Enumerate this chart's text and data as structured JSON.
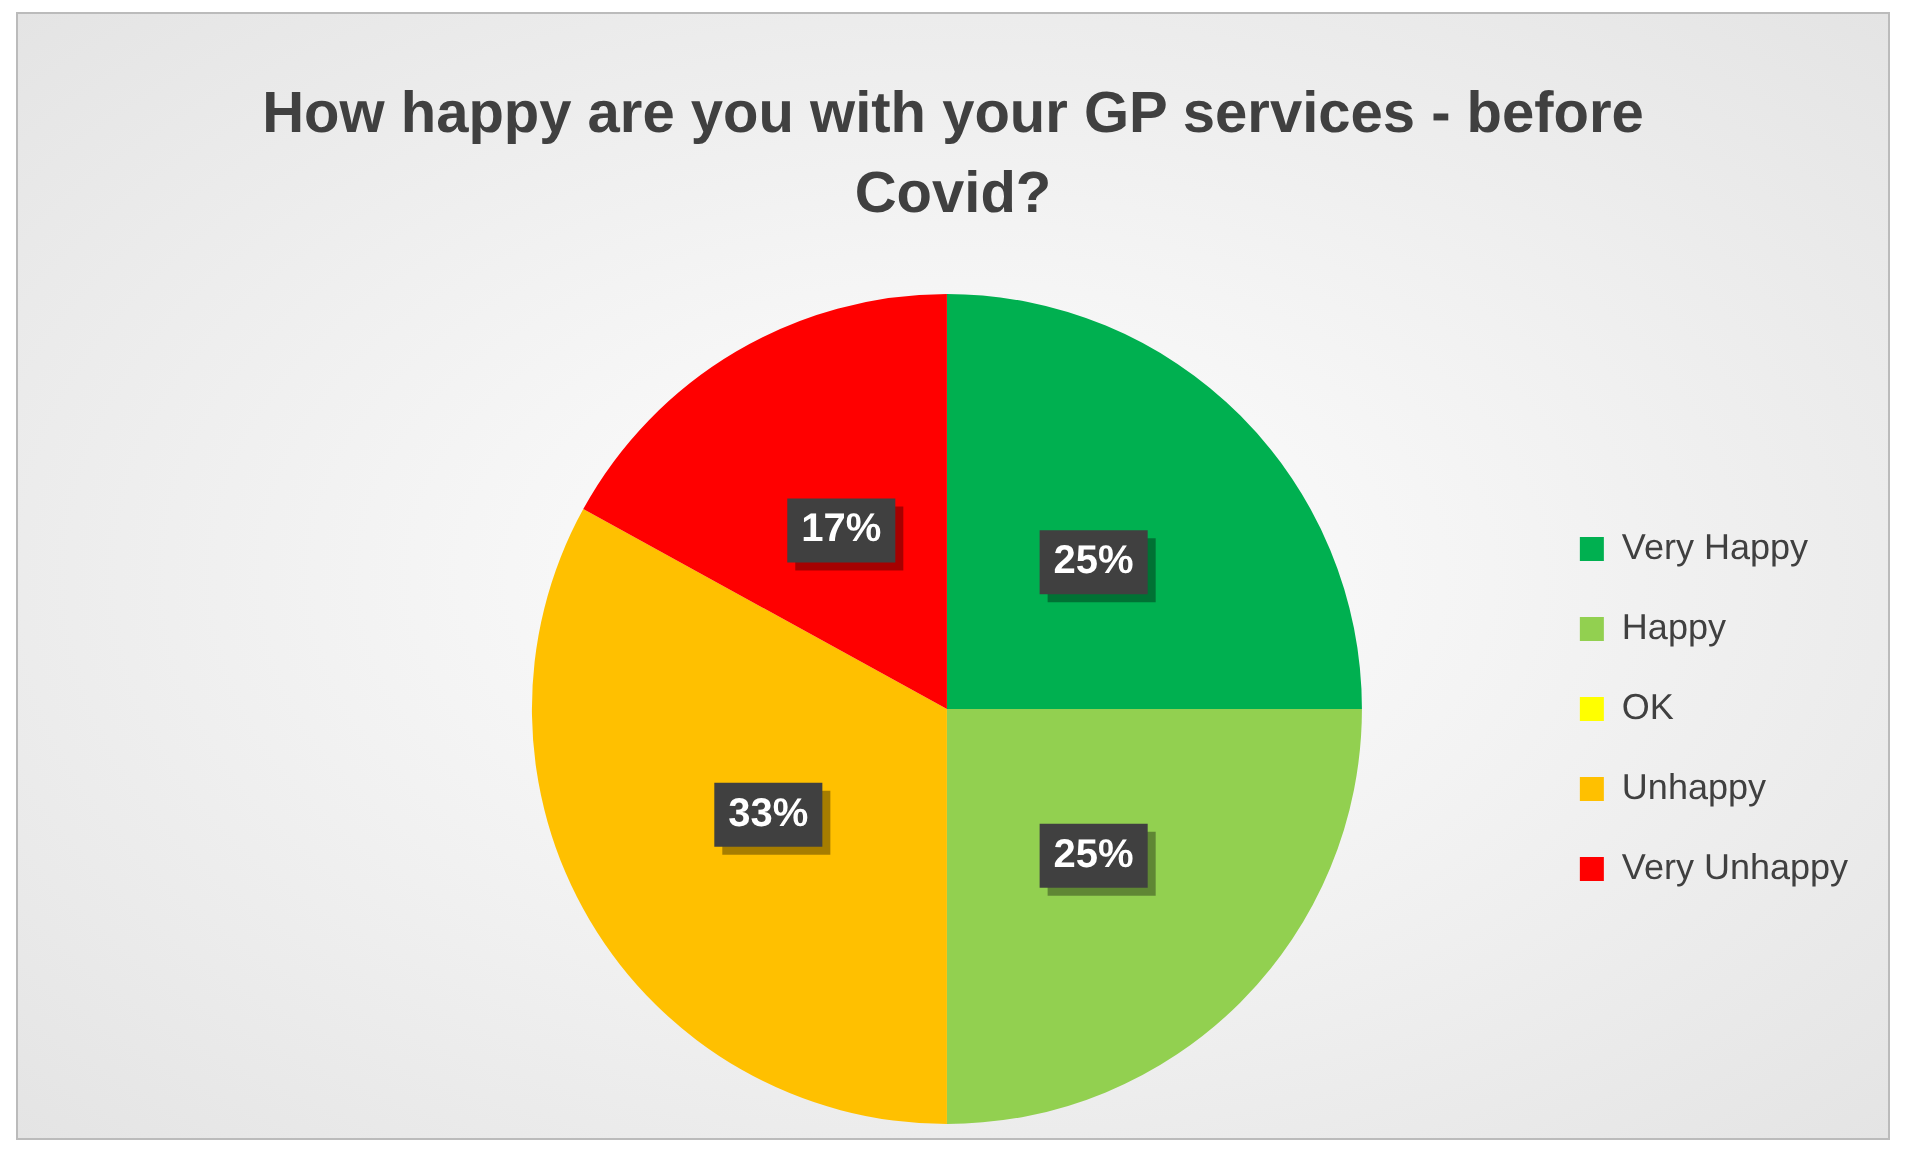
{
  "chart_data": {
    "type": "pie",
    "title": "How happy are you with your GP services - before Covid?",
    "categories": [
      "Very Happy",
      "Happy",
      "OK",
      "Unhappy",
      "Very Unhappy"
    ],
    "values": [
      25,
      25,
      0,
      33,
      17
    ],
    "colors": [
      "#00b050",
      "#92d050",
      "#ffff00",
      "#ffc000",
      "#ff0000"
    ],
    "value_labels": [
      "25%",
      "25%",
      null,
      "33%",
      "17%"
    ],
    "legend": "right"
  }
}
